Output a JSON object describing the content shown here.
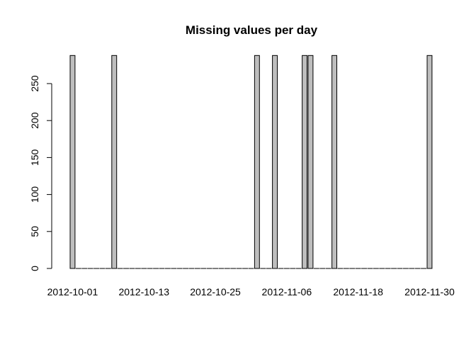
{
  "chart_data": {
    "type": "bar",
    "title": "Missing values per day",
    "xlabel": "",
    "ylabel": "",
    "ylim": [
      0,
      288
    ],
    "y_ticks": [
      0,
      50,
      100,
      150,
      200,
      250
    ],
    "x_tick_labels": [
      "2012-10-01",
      "2012-10-13",
      "2012-10-25",
      "2012-11-06",
      "2012-11-18",
      "2012-11-30"
    ],
    "categories": [
      "2012-10-01",
      "2012-10-02",
      "2012-10-03",
      "2012-10-04",
      "2012-10-05",
      "2012-10-06",
      "2012-10-07",
      "2012-10-08",
      "2012-10-09",
      "2012-10-10",
      "2012-10-11",
      "2012-10-12",
      "2012-10-13",
      "2012-10-14",
      "2012-10-15",
      "2012-10-16",
      "2012-10-17",
      "2012-10-18",
      "2012-10-19",
      "2012-10-20",
      "2012-10-21",
      "2012-10-22",
      "2012-10-23",
      "2012-10-24",
      "2012-10-25",
      "2012-10-26",
      "2012-10-27",
      "2012-10-28",
      "2012-10-29",
      "2012-10-30",
      "2012-10-31",
      "2012-11-01",
      "2012-11-02",
      "2012-11-03",
      "2012-11-04",
      "2012-11-05",
      "2012-11-06",
      "2012-11-07",
      "2012-11-08",
      "2012-11-09",
      "2012-11-10",
      "2012-11-11",
      "2012-11-12",
      "2012-11-13",
      "2012-11-14",
      "2012-11-15",
      "2012-11-16",
      "2012-11-17",
      "2012-11-18",
      "2012-11-19",
      "2012-11-20",
      "2012-11-21",
      "2012-11-22",
      "2012-11-23",
      "2012-11-24",
      "2012-11-25",
      "2012-11-26",
      "2012-11-27",
      "2012-11-28",
      "2012-11-29",
      "2012-11-30"
    ],
    "values": [
      288,
      0,
      0,
      0,
      0,
      0,
      0,
      288,
      0,
      0,
      0,
      0,
      0,
      0,
      0,
      0,
      0,
      0,
      0,
      0,
      0,
      0,
      0,
      0,
      0,
      0,
      0,
      0,
      0,
      0,
      0,
      288,
      0,
      0,
      288,
      0,
      0,
      0,
      0,
      288,
      288,
      0,
      0,
      0,
      288,
      0,
      0,
      0,
      0,
      0,
      0,
      0,
      0,
      0,
      0,
      0,
      0,
      0,
      0,
      0,
      288
    ],
    "bar_color": "#bebebe",
    "grid": false
  }
}
